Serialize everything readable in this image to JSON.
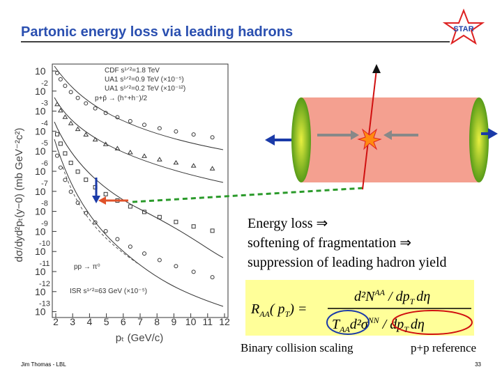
{
  "header": {
    "title": "Partonic energy loss via leading hadrons",
    "logo": "STAR"
  },
  "plot": {
    "y_label": "dσ/dyd²pₜ(y−0) (mb GeV⁻²c²)",
    "x_label": "pₜ (GeV/c)",
    "x_ticks": [
      "2",
      "3",
      "4",
      "5",
      "6",
      "7",
      "8",
      "9",
      "10",
      "11",
      "12"
    ],
    "y_ticks": [
      {
        "base": "10",
        "exp": ""
      },
      {
        "base": "10",
        "exp": "-2"
      },
      {
        "base": "10",
        "exp": "-3"
      },
      {
        "base": "10",
        "exp": "-4"
      },
      {
        "base": "10",
        "exp": "-5"
      },
      {
        "base": "10",
        "exp": "-6"
      },
      {
        "base": "10",
        "exp": "-7"
      },
      {
        "base": "10",
        "exp": "-8"
      },
      {
        "base": "10",
        "exp": "-9"
      },
      {
        "base": "10",
        "exp": "-10"
      },
      {
        "base": "10",
        "exp": "-11"
      },
      {
        "base": "10",
        "exp": "-12"
      },
      {
        "base": "10",
        "exp": "-13"
      }
    ],
    "legend": [
      "CDF s¹ᐟ²=1.8 TeV",
      "UA1 s¹ᐟ²=0.9 TeV (×10⁻⁵)",
      "UA1 s¹ᐟ²=0.2 TeV (×10⁻¹²)",
      "p+p̄ → (h⁺+h⁻)/2"
    ],
    "legend2": [
      "pp → π⁰",
      "ISR s¹ᐟ²=63 GeV (×10⁻⁵)"
    ]
  },
  "text": [
    "Energy loss ⇒",
    "softening of fragmentation ⇒",
    "suppression of leading hadron yield"
  ],
  "formula": {
    "lhs": "R",
    "lhs_sub": "AA",
    "lhs_arg": "( p",
    "lhs_arg_sub": "T",
    "lhs_end": ") =",
    "num": "d²N",
    "num_sup": "AA",
    "num_rest": " / dp",
    "num_sub": "T",
    "num_end": "dη",
    "den": "T",
    "den_sub": "AA",
    "den_mid": "d²σ",
    "den_sup": "NN",
    "den_rest": " / dp",
    "den_sub2": "T",
    "den_end": "dη"
  },
  "captions": [
    "Binary collision scaling",
    "p+p reference"
  ],
  "footer": {
    "author": "Jim Thomas - LBL",
    "page": "33"
  }
}
